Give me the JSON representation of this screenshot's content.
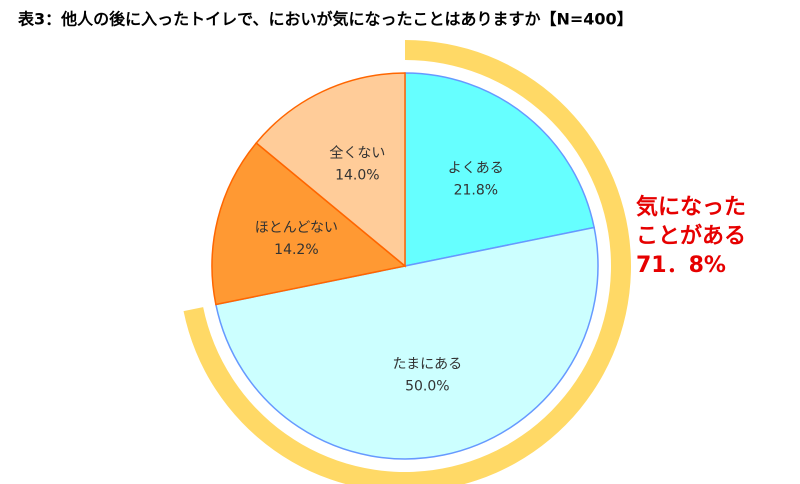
{
  "chart_data": {
    "type": "pie",
    "title": "表3：他人の後に入ったトイレで、においが気になったことはありますか【N=400】",
    "categories": [
      "よくある",
      "たまにある",
      "ほとんどない",
      "全くない"
    ],
    "values": [
      21.8,
      50.0,
      14.2,
      14.0
    ],
    "value_labels": [
      "21.8%",
      "50.0%",
      "14.2%",
      "14.0%"
    ],
    "colors": [
      "#66ffff",
      "#ccffff",
      "#ff9933",
      "#ffcc99"
    ],
    "edge_colors": [
      "#6699ff",
      "#6699ff",
      "#ff6600",
      "#ff6600"
    ],
    "annotation": [
      "気になった",
      "ことがある",
      "71．8%"
    ],
    "annotation_color": "#ffd966"
  }
}
